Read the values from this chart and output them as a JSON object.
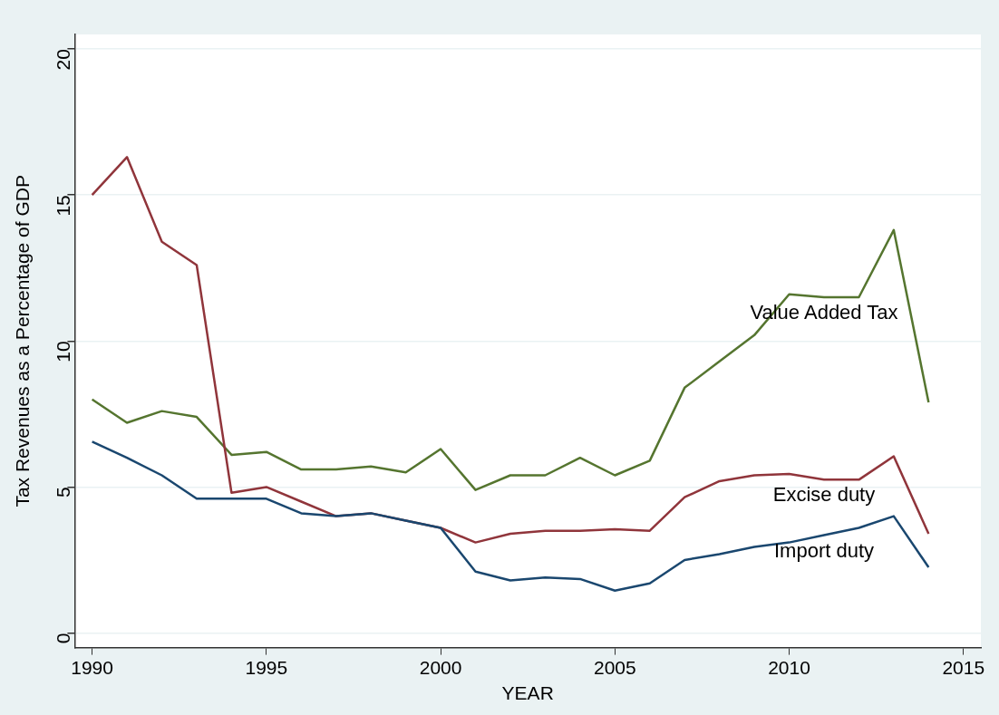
{
  "chart_data": {
    "type": "line",
    "xlabel": "YEAR",
    "ylabel": "Tax Revenues as a Percentage of GDP",
    "x": [
      1990,
      1991,
      1992,
      1993,
      1994,
      1995,
      1996,
      1997,
      1998,
      1999,
      2000,
      2001,
      2002,
      2003,
      2004,
      2005,
      2006,
      2007,
      2008,
      2009,
      2010,
      2011,
      2012,
      2013,
      2014
    ],
    "series": [
      {
        "name": "Import duty",
        "color": "#1a476f",
        "values": [
          6.55,
          6.0,
          5.4,
          4.6,
          4.6,
          4.6,
          4.1,
          4.0,
          4.1,
          3.85,
          3.6,
          2.1,
          1.8,
          1.9,
          1.85,
          1.45,
          1.7,
          2.5,
          2.7,
          2.95,
          3.1,
          3.35,
          3.6,
          4.0,
          2.25
        ]
      },
      {
        "name": "Excise duty",
        "color": "#90353b",
        "values": [
          15.0,
          16.3,
          13.4,
          12.6,
          4.8,
          5.0,
          4.5,
          4.0,
          4.1,
          3.85,
          3.6,
          3.1,
          3.4,
          3.5,
          3.5,
          3.55,
          3.5,
          4.65,
          5.2,
          5.4,
          5.45,
          5.25,
          5.25,
          6.05,
          3.4
        ]
      },
      {
        "name": "Value Added Tax",
        "color": "#55752f",
        "values": [
          8.0,
          7.2,
          7.6,
          7.4,
          6.1,
          6.2,
          5.6,
          5.6,
          5.7,
          5.5,
          6.3,
          4.9,
          5.4,
          5.4,
          6.0,
          5.4,
          5.9,
          8.4,
          9.3,
          10.2,
          11.6,
          11.5,
          11.5,
          13.8,
          7.9
        ]
      }
    ],
    "xlim": [
      1989.5,
      2015.5
    ],
    "xticks": [
      1990,
      1995,
      2000,
      2005,
      2010,
      2015
    ],
    "ylim": [
      -0.5,
      20.5
    ],
    "yticks": [
      0,
      5,
      10,
      15,
      20
    ],
    "grid": "y",
    "legend": false,
    "marker": "none",
    "line_style": "solid"
  }
}
